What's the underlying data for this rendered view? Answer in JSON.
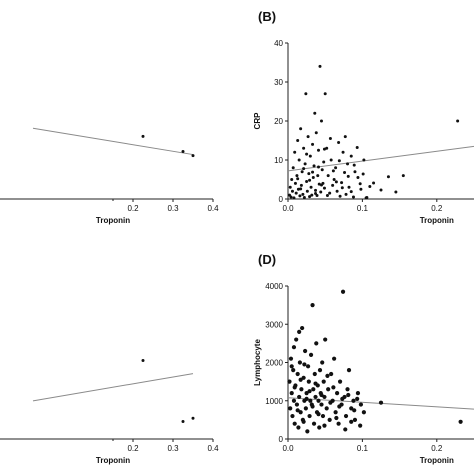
{
  "chart_data": [
    {
      "panel": "A",
      "type": "scatter",
      "xlabel": "Troponin",
      "ylabel": "",
      "xlim": [
        -0.05,
        0.4
      ],
      "x_ticks": [
        "0.2",
        "0.3",
        "0.4"
      ],
      "points": [
        [
          0.225,
          0.62
        ],
        [
          0.325,
          0.47
        ],
        [
          0.35,
          0.43
        ]
      ],
      "fit": [
        [
          -0.05,
          0.7
        ],
        [
          0.35,
          0.44
        ]
      ]
    },
    {
      "panel": "B",
      "type": "scatter",
      "title": "(B)",
      "xlabel": "Troponin",
      "ylabel": "CRP",
      "xlim": [
        0,
        0.25
      ],
      "ylim": [
        0,
        40
      ],
      "x_ticks": [
        "0.0",
        "0.1",
        "0.2"
      ],
      "y_ticks": [
        "0",
        "10",
        "20",
        "30",
        "40"
      ],
      "points": [
        [
          0.002,
          1
        ],
        [
          0.003,
          3
        ],
        [
          0.004,
          0.5
        ],
        [
          0.005,
          5
        ],
        [
          0.006,
          2
        ],
        [
          0.007,
          8
        ],
        [
          0.008,
          0.3
        ],
        [
          0.009,
          12
        ],
        [
          0.01,
          4
        ],
        [
          0.011,
          1.5
        ],
        [
          0.012,
          6
        ],
        [
          0.013,
          15
        ],
        [
          0.014,
          2.5
        ],
        [
          0.015,
          10
        ],
        [
          0.016,
          0.8
        ],
        [
          0.017,
          18
        ],
        [
          0.018,
          3.5
        ],
        [
          0.019,
          7
        ],
        [
          0.02,
          1.2
        ],
        [
          0.021,
          13
        ],
        [
          0.022,
          0.4
        ],
        [
          0.023,
          9
        ],
        [
          0.024,
          27
        ],
        [
          0.025,
          4.5
        ],
        [
          0.026,
          2
        ],
        [
          0.027,
          16
        ],
        [
          0.028,
          6.5
        ],
        [
          0.029,
          0.6
        ],
        [
          0.03,
          11
        ],
        [
          0.031,
          3
        ],
        [
          0.032,
          1
        ],
        [
          0.033,
          14
        ],
        [
          0.034,
          5.5
        ],
        [
          0.035,
          8.5
        ],
        [
          0.036,
          22
        ],
        [
          0.037,
          2.2
        ],
        [
          0.038,
          17
        ],
        [
          0.039,
          0.9
        ],
        [
          0.04,
          6
        ],
        [
          0.041,
          12.5
        ],
        [
          0.042,
          3.8
        ],
        [
          0.043,
          34
        ],
        [
          0.044,
          1.8
        ],
        [
          0.045,
          20
        ],
        [
          0.046,
          7.5
        ],
        [
          0.047,
          4
        ],
        [
          0.048,
          9.5
        ],
        [
          0.049,
          2.8
        ],
        [
          0.05,
          27
        ],
        [
          0.052,
          13
        ],
        [
          0.054,
          6
        ],
        [
          0.056,
          1.5
        ],
        [
          0.058,
          10
        ],
        [
          0.06,
          3.5
        ],
        [
          0.062,
          5
        ],
        [
          0.064,
          8
        ],
        [
          0.066,
          2
        ],
        [
          0.068,
          14.5
        ],
        [
          0.07,
          0.7
        ],
        [
          0.072,
          4.2
        ],
        [
          0.074,
          12
        ],
        [
          0.076,
          6.8
        ],
        [
          0.078,
          1.2
        ],
        [
          0.08,
          9
        ],
        [
          0.082,
          3
        ],
        [
          0.085,
          11
        ],
        [
          0.088,
          0.5
        ],
        [
          0.09,
          7
        ],
        [
          0.094,
          5.5
        ],
        [
          0.098,
          2.5
        ],
        [
          0.102,
          10
        ],
        [
          0.105,
          0.3
        ],
        [
          0.11,
          3.2
        ],
        [
          0.013,
          5.2
        ],
        [
          0.017,
          2.6
        ],
        [
          0.021,
          7.8
        ],
        [
          0.025,
          11.5
        ],
        [
          0.029,
          4.8
        ],
        [
          0.033,
          6.9
        ],
        [
          0.037,
          1.4
        ],
        [
          0.041,
          8.2
        ],
        [
          0.045,
          3.6
        ],
        [
          0.049,
          12.8
        ],
        [
          0.053,
          0.9
        ],
        [
          0.057,
          15.5
        ],
        [
          0.061,
          7.2
        ],
        [
          0.065,
          4.4
        ],
        [
          0.069,
          9.8
        ],
        [
          0.073,
          2.9
        ],
        [
          0.077,
          16
        ],
        [
          0.081,
          5.8
        ],
        [
          0.085,
          1.9
        ],
        [
          0.089,
          8.7
        ],
        [
          0.093,
          13.2
        ],
        [
          0.097,
          3.9
        ],
        [
          0.101,
          6.4
        ],
        [
          0.106,
          0.4
        ],
        [
          0.115,
          4.1
        ],
        [
          0.125,
          2.3
        ],
        [
          0.135,
          5.7
        ],
        [
          0.145,
          1.8
        ],
        [
          0.155,
          6
        ],
        [
          0.228,
          20
        ]
      ],
      "fit": [
        [
          0,
          7.2
        ],
        [
          0.25,
          13.5
        ]
      ]
    },
    {
      "panel": "C",
      "type": "scatter",
      "xlabel": "Troponin",
      "ylabel": "",
      "xlim": [
        -0.05,
        0.4
      ],
      "x_ticks": [
        "0.2",
        "0.3",
        "0.4"
      ],
      "points": [
        [
          0.225,
          0.72
        ],
        [
          0.325,
          0.16
        ],
        [
          0.35,
          0.19
        ]
      ],
      "fit": [
        [
          -0.05,
          0.35
        ],
        [
          0.35,
          0.6
        ]
      ]
    },
    {
      "panel": "D",
      "type": "scatter",
      "title": "(D)",
      "xlabel": "Troponin",
      "ylabel": "Lymphocyte",
      "xlim": [
        0,
        0.25
      ],
      "ylim": [
        0,
        4000
      ],
      "x_ticks": [
        "0.0",
        "0.1",
        "0.2"
      ],
      "y_ticks": [
        "0",
        "1000",
        "2000",
        "3000",
        "4000"
      ],
      "points": [
        [
          0.002,
          1500
        ],
        [
          0.003,
          800
        ],
        [
          0.004,
          2100
        ],
        [
          0.005,
          1200
        ],
        [
          0.006,
          600
        ],
        [
          0.007,
          1800
        ],
        [
          0.008,
          1000
        ],
        [
          0.009,
          400
        ],
        [
          0.01,
          1400
        ],
        [
          0.011,
          2600
        ],
        [
          0.012,
          900
        ],
        [
          0.013,
          1700
        ],
        [
          0.014,
          300
        ],
        [
          0.015,
          1100
        ],
        [
          0.016,
          2000
        ],
        [
          0.017,
          700
        ],
        [
          0.018,
          1300
        ],
        [
          0.019,
          2900
        ],
        [
          0.02,
          500
        ],
        [
          0.021,
          1600
        ],
        [
          0.022,
          1000
        ],
        [
          0.023,
          2300
        ],
        [
          0.024,
          800
        ],
        [
          0.025,
          1200
        ],
        [
          0.026,
          200
        ],
        [
          0.027,
          1900
        ],
        [
          0.028,
          1500
        ],
        [
          0.029,
          600
        ],
        [
          0.03,
          1000
        ],
        [
          0.031,
          2200
        ],
        [
          0.032,
          900
        ],
        [
          0.033,
          3500
        ],
        [
          0.034,
          1300
        ],
        [
          0.035,
          400
        ],
        [
          0.036,
          1700
        ],
        [
          0.037,
          1100
        ],
        [
          0.038,
          2500
        ],
        [
          0.039,
          700
        ],
        [
          0.04,
          1400
        ],
        [
          0.041,
          1000
        ],
        [
          0.042,
          300
        ],
        [
          0.043,
          1800
        ],
        [
          0.044,
          1200
        ],
        [
          0.045,
          900
        ],
        [
          0.046,
          2000
        ],
        [
          0.047,
          600
        ],
        [
          0.048,
          1500
        ],
        [
          0.049,
          1100
        ],
        [
          0.05,
          2600
        ],
        [
          0.052,
          800
        ],
        [
          0.054,
          1300
        ],
        [
          0.056,
          500
        ],
        [
          0.058,
          1700
        ],
        [
          0.06,
          1000
        ],
        [
          0.062,
          2100
        ],
        [
          0.064,
          700
        ],
        [
          0.066,
          1200
        ],
        [
          0.068,
          400
        ],
        [
          0.07,
          1500
        ],
        [
          0.072,
          900
        ],
        [
          0.074,
          3850
        ],
        [
          0.076,
          1100
        ],
        [
          0.078,
          600
        ],
        [
          0.08,
          1300
        ],
        [
          0.082,
          1800
        ],
        [
          0.085,
          800
        ],
        [
          0.088,
          1000
        ],
        [
          0.09,
          500
        ],
        [
          0.094,
          1200
        ],
        [
          0.098,
          900
        ],
        [
          0.102,
          700
        ],
        [
          0.005,
          1900
        ],
        [
          0.009,
          1350
        ],
        [
          0.013,
          750
        ],
        [
          0.017,
          1550
        ],
        [
          0.021,
          450
        ],
        [
          0.025,
          1050
        ],
        [
          0.029,
          1250
        ],
        [
          0.033,
          850
        ],
        [
          0.037,
          1450
        ],
        [
          0.041,
          650
        ],
        [
          0.045,
          1150
        ],
        [
          0.049,
          350
        ],
        [
          0.053,
          1650
        ],
        [
          0.057,
          950
        ],
        [
          0.061,
          1350
        ],
        [
          0.065,
          550
        ],
        [
          0.069,
          850
        ],
        [
          0.073,
          1050
        ],
        [
          0.077,
          250
        ],
        [
          0.081,
          1150
        ],
        [
          0.085,
          450
        ],
        [
          0.089,
          750
        ],
        [
          0.093,
          1050
        ],
        [
          0.097,
          350
        ],
        [
          0.008,
          2400
        ],
        [
          0.015,
          2800
        ],
        [
          0.022,
          1950
        ],
        [
          0.125,
          950
        ],
        [
          0.232,
          450
        ]
      ],
      "fit": [
        [
          0,
          1080
        ],
        [
          0.25,
          780
        ]
      ]
    }
  ]
}
